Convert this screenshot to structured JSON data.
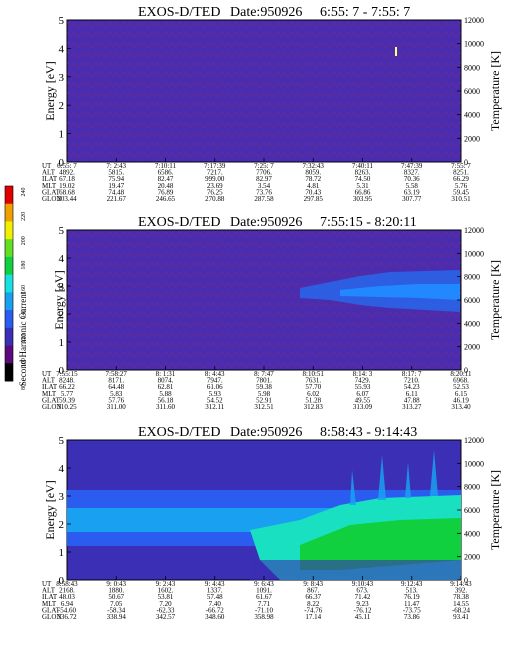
{
  "colorbar": {
    "title": "Second Harmonic Current",
    "ticks": [
      "80",
      "100",
      "120",
      "140",
      "160",
      "180",
      "200",
      "220",
      "240"
    ],
    "colors": [
      "#000000",
      "#5a0a7a",
      "#3b2fb5",
      "#2a5cf0",
      "#1aa0f0",
      "#18e0e0",
      "#10d040",
      "#60e020",
      "#f0f000",
      "#f0a000",
      "#e00000"
    ]
  },
  "chart_data": [
    {
      "type": "heatmap",
      "title": "EXOS-D/TED",
      "date_label": "Date:950926",
      "time_range": "6:55: 7 - 7:55: 7",
      "ylabel": "Energy [eV]",
      "y2label": "Temperature [K]",
      "ylim": [
        0,
        5
      ],
      "y2lim": [
        0,
        12000
      ],
      "yticks": [
        "0",
        "1",
        "2",
        "3",
        "4",
        "5"
      ],
      "y2ticks": [
        "0",
        "2000",
        "4000",
        "6000",
        "8000",
        "10000",
        "12000"
      ],
      "row_labels": [
        "UT",
        "ALT",
        "ILAT",
        "MLT",
        "GLAT",
        "GLON"
      ],
      "columns": [
        [
          "6:55: 7",
          "4892.",
          "67.18",
          "19.02",
          "68.68",
          "203.44"
        ],
        [
          "7: 2:43",
          "5815.",
          "75.94",
          "19.47",
          "74.48",
          "221.67"
        ],
        [
          "7:10:11",
          "6586.",
          "82.47",
          "20.48",
          "76.89",
          "246.65"
        ],
        [
          "7:17:39",
          "7217.",
          "999.00",
          "23.69",
          "76.25",
          "270.88"
        ],
        [
          "7:25: 7",
          "7706.",
          "82.97",
          "3.54",
          "73.76",
          "287.58"
        ],
        [
          "7:32:43",
          "8059.",
          "78.72",
          "4.81",
          "70.43",
          "297.85"
        ],
        [
          "7:40:11",
          "8263.",
          "74.50",
          "5.31",
          "66.86",
          "303.95"
        ],
        [
          "7:47:39",
          "8327.",
          "70.36",
          "5.58",
          "63.19",
          "307.77"
        ],
        [
          "7:55: 7",
          "8251.",
          "66.29",
          "5.76",
          "59.45",
          "310.51"
        ]
      ]
    },
    {
      "type": "heatmap",
      "title": "EXOS-D/TED",
      "date_label": "Date:950926",
      "time_range": "7:55:15 - 8:20:11",
      "ylabel": "Energy [eV]",
      "y2label": "Temperature [K]",
      "ylim": [
        0,
        5
      ],
      "y2lim": [
        0,
        12000
      ],
      "yticks": [
        "0",
        "1",
        "2",
        "3",
        "4",
        "5"
      ],
      "y2ticks": [
        "0",
        "2000",
        "4000",
        "6000",
        "8000",
        "10000",
        "12000"
      ],
      "row_labels": [
        "UT",
        "ALT",
        "ILAT",
        "MLT",
        "GLAT",
        "GLON"
      ],
      "columns": [
        [
          "7:55:15",
          "8248.",
          "66.22",
          "5.77",
          "59.39",
          "310.25"
        ],
        [
          "7:58:27",
          "8171.",
          "64.48",
          "5.83",
          "57.76",
          "311.00"
        ],
        [
          "8: 1:31",
          "8074.",
          "62.81",
          "5.88",
          "56.18",
          "311.60"
        ],
        [
          "8: 4:43",
          "7947.",
          "61.06",
          "5.93",
          "54.52",
          "312.11"
        ],
        [
          "8: 7:47",
          "7801.",
          "59.38",
          "5.98",
          "52.91",
          "312.51"
        ],
        [
          "8:10:51",
          "7631.",
          "57.70",
          "6.02",
          "51.28",
          "312.83"
        ],
        [
          "8:14: 3",
          "7429.",
          "55.93",
          "6.07",
          "49.55",
          "313.09"
        ],
        [
          "8:17: 7",
          "7210.",
          "54.23",
          "6.11",
          "47.88",
          "313.27"
        ],
        [
          "8:20:11",
          "6968.",
          "52.53",
          "6.15",
          "46.19",
          "313.40"
        ]
      ]
    },
    {
      "type": "heatmap",
      "title": "EXOS-D/TED",
      "date_label": "Date:950926",
      "time_range": "8:58:43 - 9:14:43",
      "ylabel": "Energy [eV]",
      "y2label": "Temperature [K]",
      "ylim": [
        0,
        5
      ],
      "y2lim": [
        0,
        12000
      ],
      "yticks": [
        "0",
        "1",
        "2",
        "3",
        "4",
        "5"
      ],
      "y2ticks": [
        "0",
        "2000",
        "4000",
        "6000",
        "8000",
        "10000",
        "12000"
      ],
      "row_labels": [
        "UT",
        "ALT",
        "ILAT",
        "MLT",
        "GLAT",
        "GLON"
      ],
      "columns": [
        [
          "8:58:43",
          "2168.",
          "48.03",
          "6.94",
          "-54.60",
          "336.72"
        ],
        [
          "9: 0:43",
          "1880.",
          "50.67",
          "7.05",
          "-58.34",
          "338.94"
        ],
        [
          "9: 2:43",
          "1602.",
          "53.81",
          "7.20",
          "-62.33",
          "342.57"
        ],
        [
          "9: 4:43",
          "1337.",
          "57.48",
          "7.40",
          "-66.72",
          "348.60"
        ],
        [
          "9: 6:43",
          "1091.",
          "61.67",
          "7.71",
          "-71.10",
          "358.98"
        ],
        [
          "9: 8:43",
          "867.",
          "66.37",
          "8.22",
          "-74.76",
          "17.14"
        ],
        [
          "9:10:43",
          "673.",
          "71.42",
          "9.23",
          "-76.12",
          "45.11"
        ],
        [
          "9:12:43",
          "513.",
          "76.19",
          "11.47",
          "-73.75",
          "73.86"
        ],
        [
          "9:14:43",
          "392.",
          "78.38",
          "14.55",
          "-68.24",
          "93.41"
        ]
      ]
    }
  ]
}
